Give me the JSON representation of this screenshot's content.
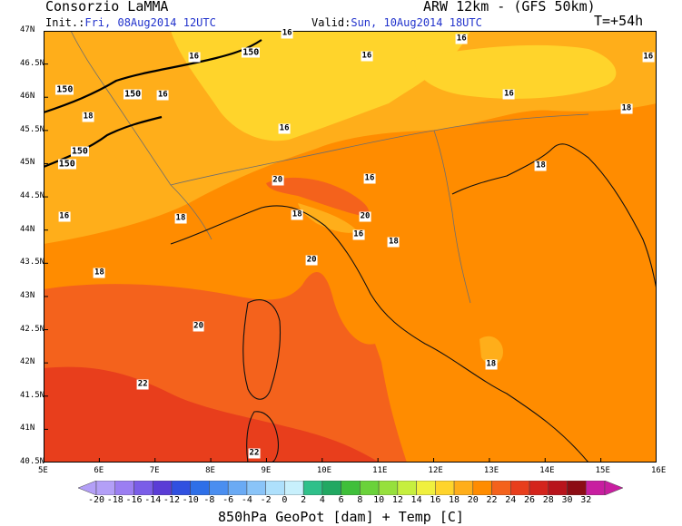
{
  "header": {
    "org": "Consorzio LaMMA",
    "model": "ARW 12km - (GFS 50km)",
    "init_label": "Init.:",
    "init_value": "Fri, 08Aug2014 12UTC",
    "valid_label": "Valid:",
    "valid_value": "Sun, 10Aug2014 18UTC",
    "lead": "T=+54h"
  },
  "footer": "850hPa GeoPot [dam] + Temp [C]",
  "axes": {
    "lat_ticks": [
      "47N",
      "46.5N",
      "46N",
      "45.5N",
      "45N",
      "44.5N",
      "44N",
      "43.5N",
      "43N",
      "42.5N",
      "42N",
      "41.5N",
      "41N",
      "40.5N"
    ],
    "lon_ticks": [
      "5E",
      "6E",
      "7E",
      "8E",
      "9E",
      "10E",
      "11E",
      "12E",
      "13E",
      "14E",
      "15E",
      "16E"
    ]
  },
  "contour_labels": {
    "temp": [
      {
        "text": "16",
        "lon": 9.37,
        "lat": 46.96
      },
      {
        "text": "16",
        "lon": 10.8,
        "lat": 46.62
      },
      {
        "text": "16",
        "lon": 12.5,
        "lat": 46.88
      },
      {
        "text": "16",
        "lon": 7.7,
        "lat": 46.6
      },
      {
        "text": "16",
        "lon": 15.85,
        "lat": 46.6
      },
      {
        "text": "16",
        "lon": 13.35,
        "lat": 46.05
      },
      {
        "text": "16",
        "lon": 7.14,
        "lat": 46.03
      },
      {
        "text": "18",
        "lon": 5.8,
        "lat": 45.7
      },
      {
        "text": "16",
        "lon": 9.32,
        "lat": 45.52
      },
      {
        "text": "18",
        "lon": 15.46,
        "lat": 45.82
      },
      {
        "text": "18",
        "lon": 13.92,
        "lat": 44.97
      },
      {
        "text": "20",
        "lon": 9.2,
        "lat": 44.75
      },
      {
        "text": "16",
        "lon": 10.85,
        "lat": 44.78
      },
      {
        "text": "18",
        "lon": 7.46,
        "lat": 44.17
      },
      {
        "text": "16",
        "lon": 5.37,
        "lat": 44.2
      },
      {
        "text": "18",
        "lon": 9.55,
        "lat": 44.23
      },
      {
        "text": "20",
        "lon": 10.77,
        "lat": 44.2
      },
      {
        "text": "16",
        "lon": 10.65,
        "lat": 43.93
      },
      {
        "text": "18",
        "lon": 11.28,
        "lat": 43.82
      },
      {
        "text": "20",
        "lon": 9.81,
        "lat": 43.55
      },
      {
        "text": "18",
        "lon": 6.0,
        "lat": 43.35
      },
      {
        "text": "20",
        "lon": 7.78,
        "lat": 42.55
      },
      {
        "text": "18",
        "lon": 13.03,
        "lat": 41.98
      },
      {
        "text": "22",
        "lon": 6.78,
        "lat": 41.68
      },
      {
        "text": "22",
        "lon": 8.78,
        "lat": 40.63
      }
    ],
    "geopot": [
      {
        "text": "150",
        "lon": 8.72,
        "lat": 46.67
      },
      {
        "text": "150",
        "lon": 5.38,
        "lat": 46.11
      },
      {
        "text": "150",
        "lon": 6.6,
        "lat": 46.05
      },
      {
        "text": "150",
        "lon": 5.65,
        "lat": 45.19
      },
      {
        "text": "150",
        "lon": 5.42,
        "lat": 44.99
      }
    ]
  },
  "colorbar": {
    "labels": [
      "-20",
      "-18",
      "-16",
      "-14",
      "-12",
      "-10",
      "-8",
      "-6",
      "-4",
      "-2",
      "0",
      "2",
      "4",
      "6",
      "8",
      "10",
      "12",
      "14",
      "16",
      "18",
      "20",
      "22",
      "24",
      "26",
      "28",
      "30",
      "32"
    ],
    "colors": [
      "#b39ff7",
      "#9b7ef2",
      "#7a5de8",
      "#5a3cd6",
      "#3050e0",
      "#2e6fe8",
      "#4a8ef0",
      "#6aaaf4",
      "#8ac4f8",
      "#aee0fc",
      "#c8f0fc",
      "#2fc08a",
      "#21a862",
      "#3fbf3a",
      "#6ad23a",
      "#96e03c",
      "#c6ef3e",
      "#f0f03e",
      "#ffd42b",
      "#ffae1a",
      "#ff8c00",
      "#f4621c",
      "#e83e1c",
      "#d4241c",
      "#b8141c",
      "#8c0c14",
      "#c81ea0"
    ]
  }
}
